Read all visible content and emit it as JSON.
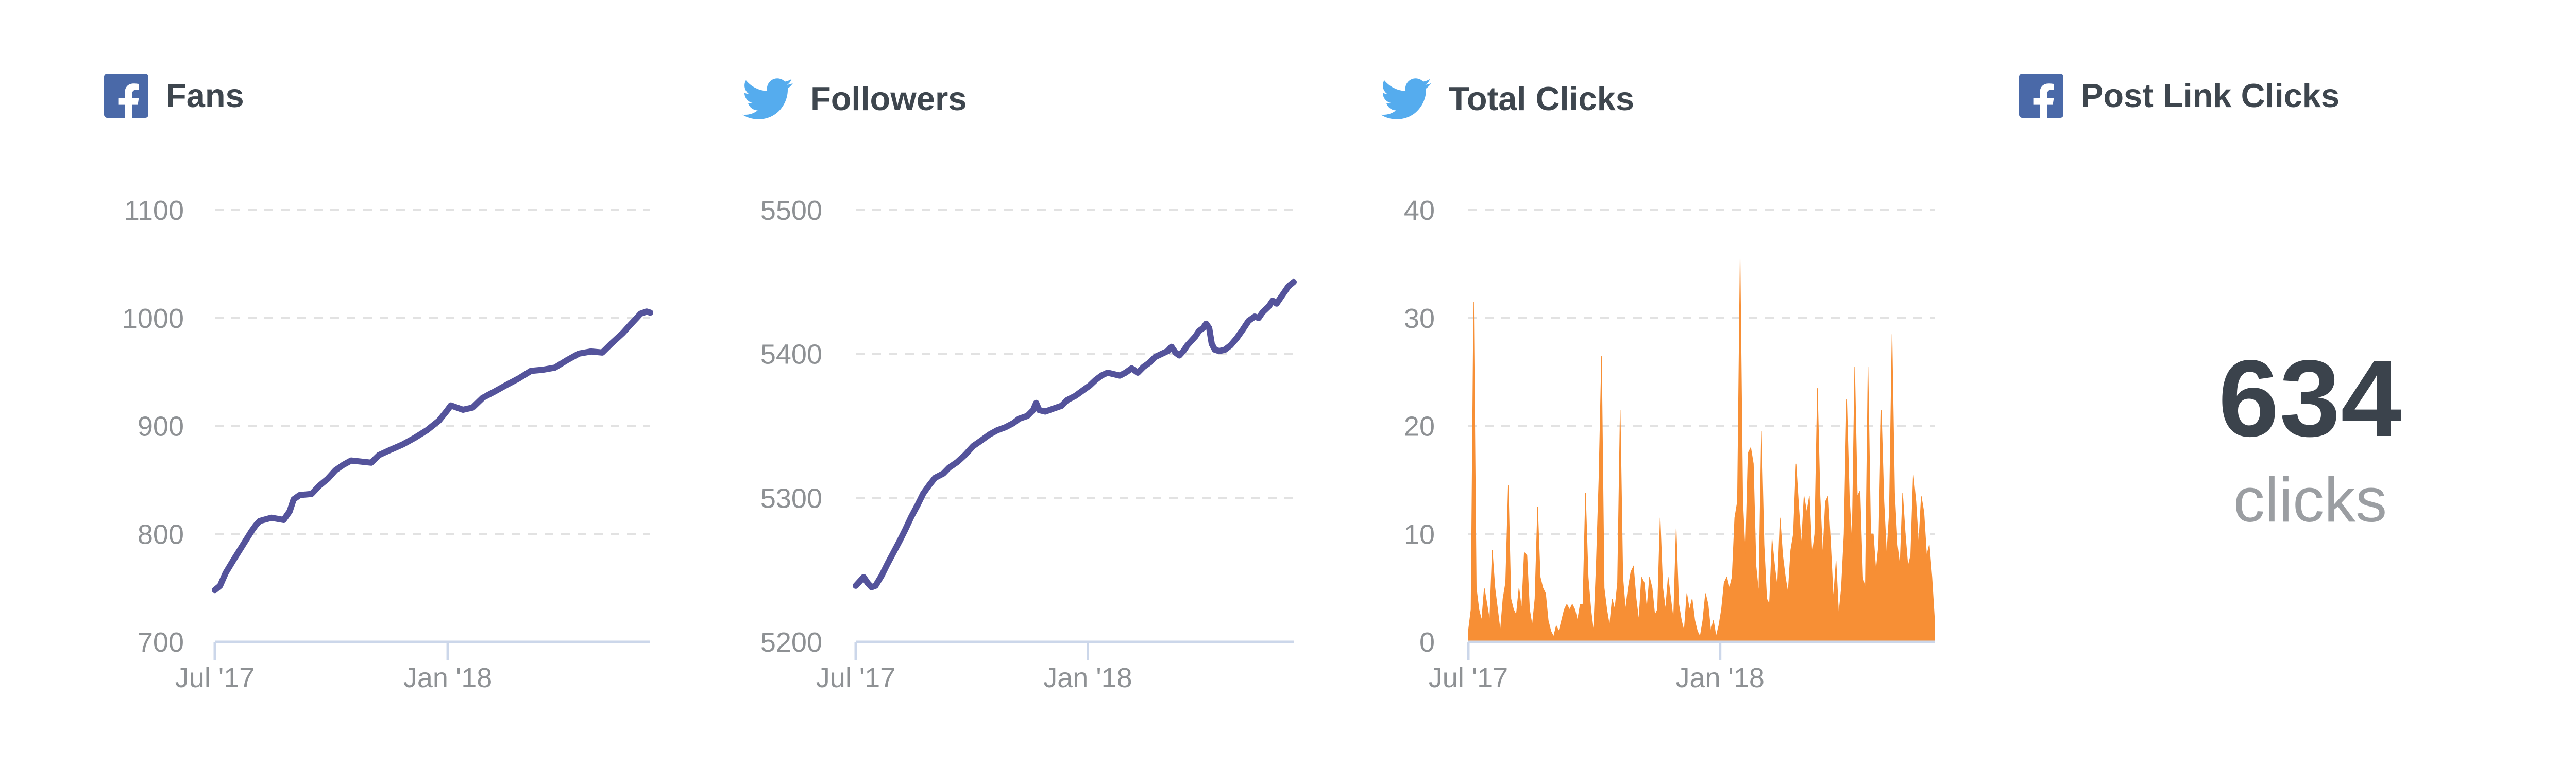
{
  "style": {
    "facebook_blue": "#4a69a8",
    "twitter_blue": "#55acee",
    "line_purple": "#54539b",
    "area_orange": "#f78f35",
    "title_color": "#3e464e",
    "tick_label_color": "#8e9194",
    "gridline_color": "#e2e2e2",
    "axis_line_color": "#ccd7ea",
    "stat_number_color": "#3b434c",
    "stat_unit_color": "#9b9ea2"
  },
  "chart_data": [
    {
      "id": "fans",
      "network": "facebook",
      "title": "Fans",
      "type": "line",
      "series_color": "#54539b",
      "ylabel": "",
      "ylim": [
        700,
        1100
      ],
      "y_ticks": [
        700,
        800,
        900,
        1000,
        1100
      ],
      "x_ticks": [
        {
          "label": "Jul '17",
          "pos": 0.0
        },
        {
          "label": "Jan '18",
          "pos": 0.535
        }
      ],
      "grid": "dashed-horizontal",
      "points": [
        [
          0.0,
          748
        ],
        [
          0.012,
          752
        ],
        [
          0.025,
          764
        ],
        [
          0.043,
          776
        ],
        [
          0.057,
          785
        ],
        [
          0.071,
          794
        ],
        [
          0.085,
          803
        ],
        [
          0.094,
          808
        ],
        [
          0.103,
          812
        ],
        [
          0.13,
          815
        ],
        [
          0.158,
          813
        ],
        [
          0.172,
          821
        ],
        [
          0.181,
          832
        ],
        [
          0.195,
          836
        ],
        [
          0.222,
          837
        ],
        [
          0.241,
          845
        ],
        [
          0.259,
          851
        ],
        [
          0.277,
          859
        ],
        [
          0.295,
          864
        ],
        [
          0.313,
          868
        ],
        [
          0.336,
          867
        ],
        [
          0.359,
          866
        ],
        [
          0.377,
          873
        ],
        [
          0.404,
          878
        ],
        [
          0.432,
          883
        ],
        [
          0.459,
          889
        ],
        [
          0.487,
          896
        ],
        [
          0.515,
          905
        ],
        [
          0.533,
          914
        ],
        [
          0.542,
          919
        ],
        [
          0.57,
          915
        ],
        [
          0.592,
          917
        ],
        [
          0.615,
          926
        ],
        [
          0.643,
          932
        ],
        [
          0.67,
          938
        ],
        [
          0.698,
          944
        ],
        [
          0.726,
          951
        ],
        [
          0.753,
          952
        ],
        [
          0.781,
          954
        ],
        [
          0.809,
          961
        ],
        [
          0.836,
          967
        ],
        [
          0.864,
          969
        ],
        [
          0.89,
          968
        ],
        [
          0.91,
          976
        ],
        [
          0.937,
          986
        ],
        [
          0.955,
          994
        ],
        [
          0.969,
          1000
        ],
        [
          0.978,
          1004
        ],
        [
          0.992,
          1006
        ],
        [
          1.0,
          1005
        ]
      ]
    },
    {
      "id": "followers",
      "network": "twitter",
      "title": "Followers",
      "type": "line",
      "series_color": "#54539b",
      "ylabel": "",
      "ylim": [
        5200,
        5500
      ],
      "y_ticks": [
        5200,
        5300,
        5400,
        5500
      ],
      "x_ticks": [
        {
          "label": "Jul '17",
          "pos": 0.0
        },
        {
          "label": "Jan '18",
          "pos": 0.53
        }
      ],
      "grid": "dashed-horizontal",
      "points": [
        [
          0.0,
          5239
        ],
        [
          0.018,
          5245
        ],
        [
          0.027,
          5241
        ],
        [
          0.036,
          5238
        ],
        [
          0.045,
          5239
        ],
        [
          0.059,
          5246
        ],
        [
          0.072,
          5254
        ],
        [
          0.086,
          5262
        ],
        [
          0.1,
          5270
        ],
        [
          0.113,
          5278
        ],
        [
          0.127,
          5287
        ],
        [
          0.141,
          5295
        ],
        [
          0.154,
          5303
        ],
        [
          0.168,
          5309
        ],
        [
          0.181,
          5314
        ],
        [
          0.2,
          5317
        ],
        [
          0.213,
          5321
        ],
        [
          0.232,
          5325
        ],
        [
          0.25,
          5330
        ],
        [
          0.268,
          5336
        ],
        [
          0.287,
          5340
        ],
        [
          0.305,
          5344
        ],
        [
          0.323,
          5347
        ],
        [
          0.341,
          5349
        ],
        [
          0.36,
          5352
        ],
        [
          0.373,
          5355
        ],
        [
          0.392,
          5357
        ],
        [
          0.405,
          5361
        ],
        [
          0.412,
          5366
        ],
        [
          0.419,
          5361
        ],
        [
          0.433,
          5360
        ],
        [
          0.451,
          5362
        ],
        [
          0.47,
          5364
        ],
        [
          0.483,
          5368
        ],
        [
          0.502,
          5371
        ],
        [
          0.52,
          5375
        ],
        [
          0.534,
          5378
        ],
        [
          0.548,
          5382
        ],
        [
          0.561,
          5385
        ],
        [
          0.575,
          5387
        ],
        [
          0.589,
          5386
        ],
        [
          0.603,
          5385
        ],
        [
          0.616,
          5387
        ],
        [
          0.63,
          5390
        ],
        [
          0.644,
          5387
        ],
        [
          0.657,
          5391
        ],
        [
          0.671,
          5394
        ],
        [
          0.684,
          5398
        ],
        [
          0.698,
          5400
        ],
        [
          0.712,
          5402
        ],
        [
          0.721,
          5405
        ],
        [
          0.73,
          5401
        ],
        [
          0.739,
          5399
        ],
        [
          0.748,
          5402
        ],
        [
          0.757,
          5406
        ],
        [
          0.766,
          5409
        ],
        [
          0.775,
          5412
        ],
        [
          0.784,
          5416
        ],
        [
          0.793,
          5418
        ],
        [
          0.8,
          5421
        ],
        [
          0.807,
          5418
        ],
        [
          0.813,
          5407
        ],
        [
          0.82,
          5403
        ],
        [
          0.83,
          5402
        ],
        [
          0.843,
          5403
        ],
        [
          0.856,
          5406
        ],
        [
          0.87,
          5411
        ],
        [
          0.884,
          5417
        ],
        [
          0.897,
          5423
        ],
        [
          0.911,
          5426
        ],
        [
          0.92,
          5425
        ],
        [
          0.929,
          5429
        ],
        [
          0.943,
          5433
        ],
        [
          0.952,
          5437
        ],
        [
          0.961,
          5435
        ],
        [
          0.97,
          5439
        ],
        [
          0.979,
          5443
        ],
        [
          0.988,
          5447
        ],
        [
          1.0,
          5450
        ]
      ]
    },
    {
      "id": "total-clicks",
      "network": "twitter",
      "title": "Total Clicks",
      "type": "area",
      "series_color": "#f78f35",
      "ylabel": "",
      "ylim": [
        0,
        40
      ],
      "y_ticks": [
        0,
        10,
        20,
        30,
        40
      ],
      "x_ticks": [
        {
          "label": "Jul '17",
          "pos": 0.0
        },
        {
          "label": "Jan '18",
          "pos": 0.54
        }
      ],
      "grid": "dashed-horizontal",
      "values": [
        1,
        3,
        31.5,
        5,
        3,
        2,
        5,
        3.5,
        2,
        8.5,
        5,
        3,
        1,
        4,
        5.5,
        14.5,
        4,
        3,
        2.5,
        5,
        3,
        8.3,
        8,
        3,
        1.5,
        4,
        12.5,
        6,
        5,
        4.5,
        2,
        1,
        0.5,
        1.5,
        1,
        2,
        3,
        3.5,
        3,
        3.5,
        3,
        2,
        3.5,
        3.5,
        13.8,
        6,
        3,
        1,
        7,
        15,
        26.5,
        5,
        3,
        1.5,
        4,
        3,
        5.5,
        21.5,
        6,
        3,
        5,
        6.5,
        7,
        4,
        2,
        6,
        5.5,
        3,
        6,
        5,
        2.5,
        3,
        11.5,
        5,
        3,
        6,
        4,
        2,
        10.5,
        3.5,
        2,
        1,
        4.5,
        3,
        4,
        2,
        1,
        0.5,
        2,
        4.5,
        3.5,
        1,
        2,
        0.5,
        1.5,
        3,
        5.5,
        6,
        5,
        6,
        11.5,
        13,
        35.5,
        13,
        8,
        17.5,
        18,
        16.5,
        7,
        4.5,
        19.5,
        9,
        4,
        3.5,
        9.5,
        7,
        5,
        11.5,
        8,
        6,
        4.5,
        8.5,
        10,
        16.5,
        12.5,
        9,
        13.5,
        12,
        13.5,
        8,
        10,
        23.5,
        13.5,
        8,
        13,
        13.5,
        9,
        4,
        7.5,
        2.5,
        5,
        10,
        22.5,
        13.5,
        9,
        25.5,
        13.5,
        14,
        6,
        5,
        25.5,
        10,
        10,
        6.5,
        9,
        21.5,
        13,
        8,
        12,
        28.5,
        13.8,
        9,
        7,
        13.8,
        10,
        7,
        8,
        15.5,
        13,
        9,
        13.5,
        12,
        8,
        9,
        6,
        2
      ]
    },
    {
      "id": "post-link-clicks",
      "network": "facebook",
      "title": "Post Link Clicks",
      "type": "stat",
      "value": "634",
      "unit": "clicks"
    }
  ]
}
